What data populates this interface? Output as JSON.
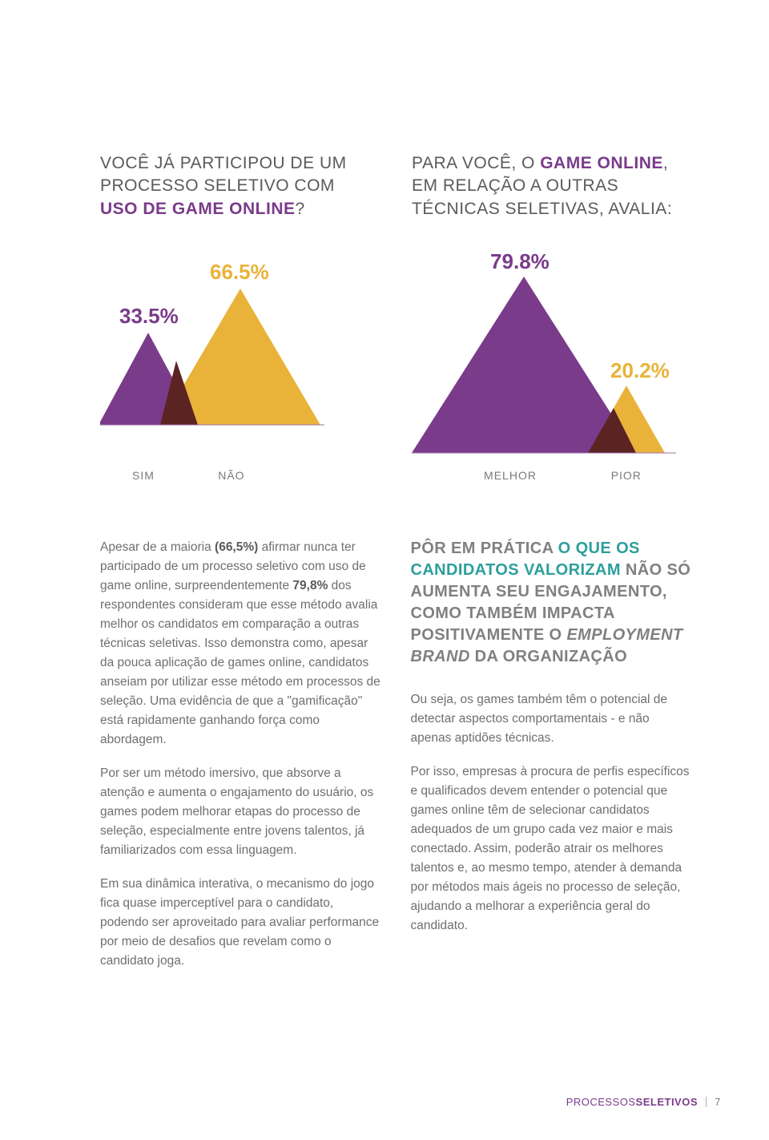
{
  "left_chart": {
    "question_pre": "VOCÊ JÁ PARTICIPOU DE UM PROCESSO SELETIVO COM ",
    "question_highlight": "USO DE GAME ONLINE",
    "question_post": "?",
    "series": [
      {
        "label": "SIM",
        "value": 33.5,
        "pct_text": "33.5%",
        "color": "#7a3b8a",
        "pct_color": "#7a3b8a"
      },
      {
        "label": "NÃO",
        "value": 66.5,
        "pct_text": "66.5%",
        "color": "#e9b33a",
        "pct_color": "#e9b33a"
      }
    ],
    "shadow_color": "#5c2323",
    "baseline_color": "#9f6fae"
  },
  "right_chart": {
    "question_pre": "PARA VOCÊ, O ",
    "question_highlight": "GAME ONLINE",
    "question_post": ", EM RELAÇÃO A OUTRAS TÉCNICAS SELETIVAS, AVALIA:",
    "series": [
      {
        "label": "MELHOR",
        "value": 79.8,
        "pct_text": "79.8%",
        "color": "#7a3b8a",
        "pct_color": "#7a3b8a"
      },
      {
        "label": "PIOR",
        "value": 20.2,
        "pct_text": "20.2%",
        "color": "#e9b33a",
        "pct_color": "#e9b33a"
      }
    ],
    "shadow_color": "#5c2323",
    "baseline_color": "#9f6fae"
  },
  "body": {
    "p1_a": "Apesar de a maioria ",
    "p1_b": "(66,5%)",
    "p1_c": " afirmar nunca ter participado de um processo seletivo com uso de game online, surpreendentemente ",
    "p1_d": "79,8%",
    "p1_e": " dos respondentes consideram que esse método avalia melhor os candidatos em comparação a outras técnicas seletivas. Isso demonstra como, apesar da pouca aplicação de games online, candidatos anseiam por utilizar esse método em processos de seleção. Uma evidência de que a \"gamificação\" está rapidamente ganhando força como abordagem.",
    "p2": "Por ser um método imersivo, que absorve a atenção e aumenta o engajamento do usuário, os games podem melhorar etapas do processo de seleção, especialmente entre jovens talentos, já familiarizados com essa linguagem.",
    "p3": "Em sua dinâmica interativa, o mecanismo do jogo fica quase imperceptível para o candidato, podendo ser aproveitado para avaliar performance por meio de desafios que revelam como o candidato joga.",
    "callout_a": "PÔR EM PRÁTICA ",
    "callout_b": "O QUE OS CANDIDATOS VALORIZAM",
    "callout_c": " NÃO SÓ AUMENTA SEU ENGAJAMENTO, COMO TAMBÉM IMPACTA POSITIVAMENTE O ",
    "callout_d": "EMPLOYMENT BRAND",
    "callout_e": " DA ORGANIZAÇÃO",
    "p4": "Ou seja, os games também têm o potencial de detectar aspectos comportamentais - e não apenas aptidões técnicas.",
    "p5": "Por isso, empresas à procura de perfis específicos e qualificados devem entender o potencial que games online têm de selecionar candidatos adequados de um grupo cada vez maior e mais conectado. Assim, poderão atrair os melhores talentos e, ao mesmo tempo, atender à demanda por métodos mais ágeis no processo de seleção, ajudando a melhorar a experiência geral do candidato."
  },
  "footer": {
    "light": "PROCESSOS",
    "bold": "SELETIVOS",
    "page": "7"
  }
}
